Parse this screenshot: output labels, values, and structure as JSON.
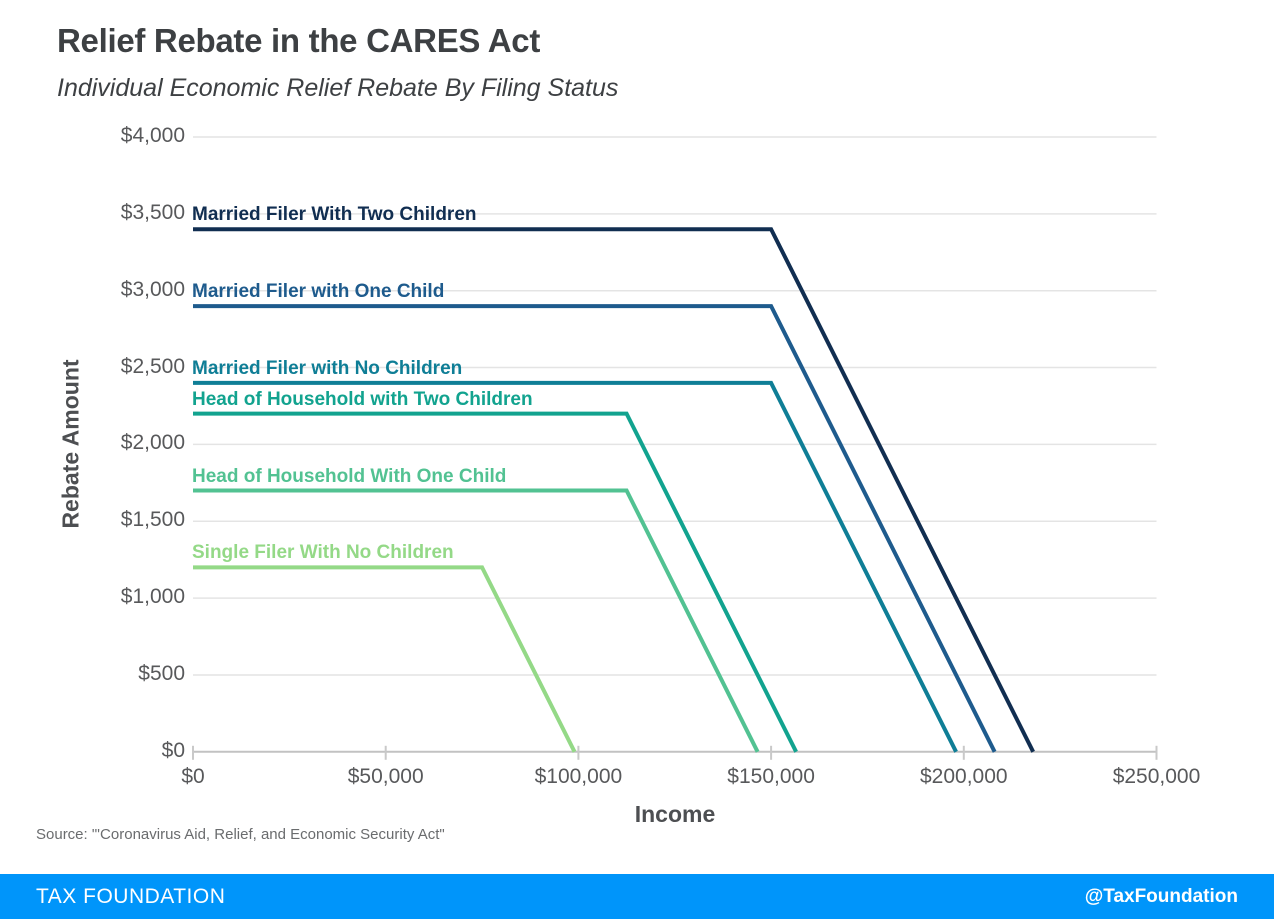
{
  "header": {
    "title": "Relief Rebate in the CARES Act",
    "subtitle": "Individual Economic Relief Rebate By Filing Status"
  },
  "chart_data": {
    "type": "line",
    "title": "Relief Rebate in the CARES Act",
    "subtitle": "Individual Economic Relief Rebate By Filing Status",
    "xlabel": "Income",
    "ylabel": "Rebate Amount",
    "xlim": [
      0,
      250000
    ],
    "ylim": [
      0,
      4000
    ],
    "grid": "horizontal",
    "legend_position": "inline-labels-above-lines",
    "x_ticks": [
      0,
      50000,
      100000,
      150000,
      200000,
      250000
    ],
    "x_tick_labels": [
      "$0",
      "$50,000",
      "$100,000",
      "$150,000",
      "$200,000",
      "$250,000"
    ],
    "y_ticks": [
      0,
      500,
      1000,
      1500,
      2000,
      2500,
      3000,
      3500,
      4000
    ],
    "y_tick_labels": [
      "$0",
      "$500",
      "$1,000",
      "$1,500",
      "$2,000",
      "$2,500",
      "$3,000",
      "$3,500",
      "$4,000"
    ],
    "series": [
      {
        "name": "Married Filer With Two Children",
        "color": "#112e51",
        "points": [
          [
            0,
            3400
          ],
          [
            150000,
            3400
          ],
          [
            218000,
            0
          ]
        ]
      },
      {
        "name": "Married Filer with One Child",
        "color": "#1e5b8d",
        "points": [
          [
            0,
            2900
          ],
          [
            150000,
            2900
          ],
          [
            208000,
            0
          ]
        ]
      },
      {
        "name": "Married Filer with No Children",
        "color": "#0f7e96",
        "points": [
          [
            0,
            2400
          ],
          [
            150000,
            2400
          ],
          [
            198000,
            0
          ]
        ]
      },
      {
        "name": "Head of Household with Two Children",
        "color": "#12a38f",
        "points": [
          [
            0,
            2200
          ],
          [
            112500,
            2200
          ],
          [
            156500,
            0
          ]
        ]
      },
      {
        "name": "Head of Household With One Child",
        "color": "#52c292",
        "points": [
          [
            0,
            1700
          ],
          [
            112500,
            1700
          ],
          [
            146500,
            0
          ]
        ]
      },
      {
        "name": "Single Filer With No Children",
        "color": "#94d987",
        "points": [
          [
            0,
            1200
          ],
          [
            75000,
            1200
          ],
          [
            99000,
            0
          ]
        ]
      }
    ],
    "colors": {
      "gridline": "#e4e4e4",
      "axis": "#c2c2c2",
      "tick": "#c9c9c9"
    }
  },
  "source": "Source: \"'Coronavirus Aid, Relief, and Economic Security Act\"",
  "footer": {
    "brand": "TAX FOUNDATION",
    "handle": "@TaxFoundation",
    "background": "#0095fa"
  }
}
